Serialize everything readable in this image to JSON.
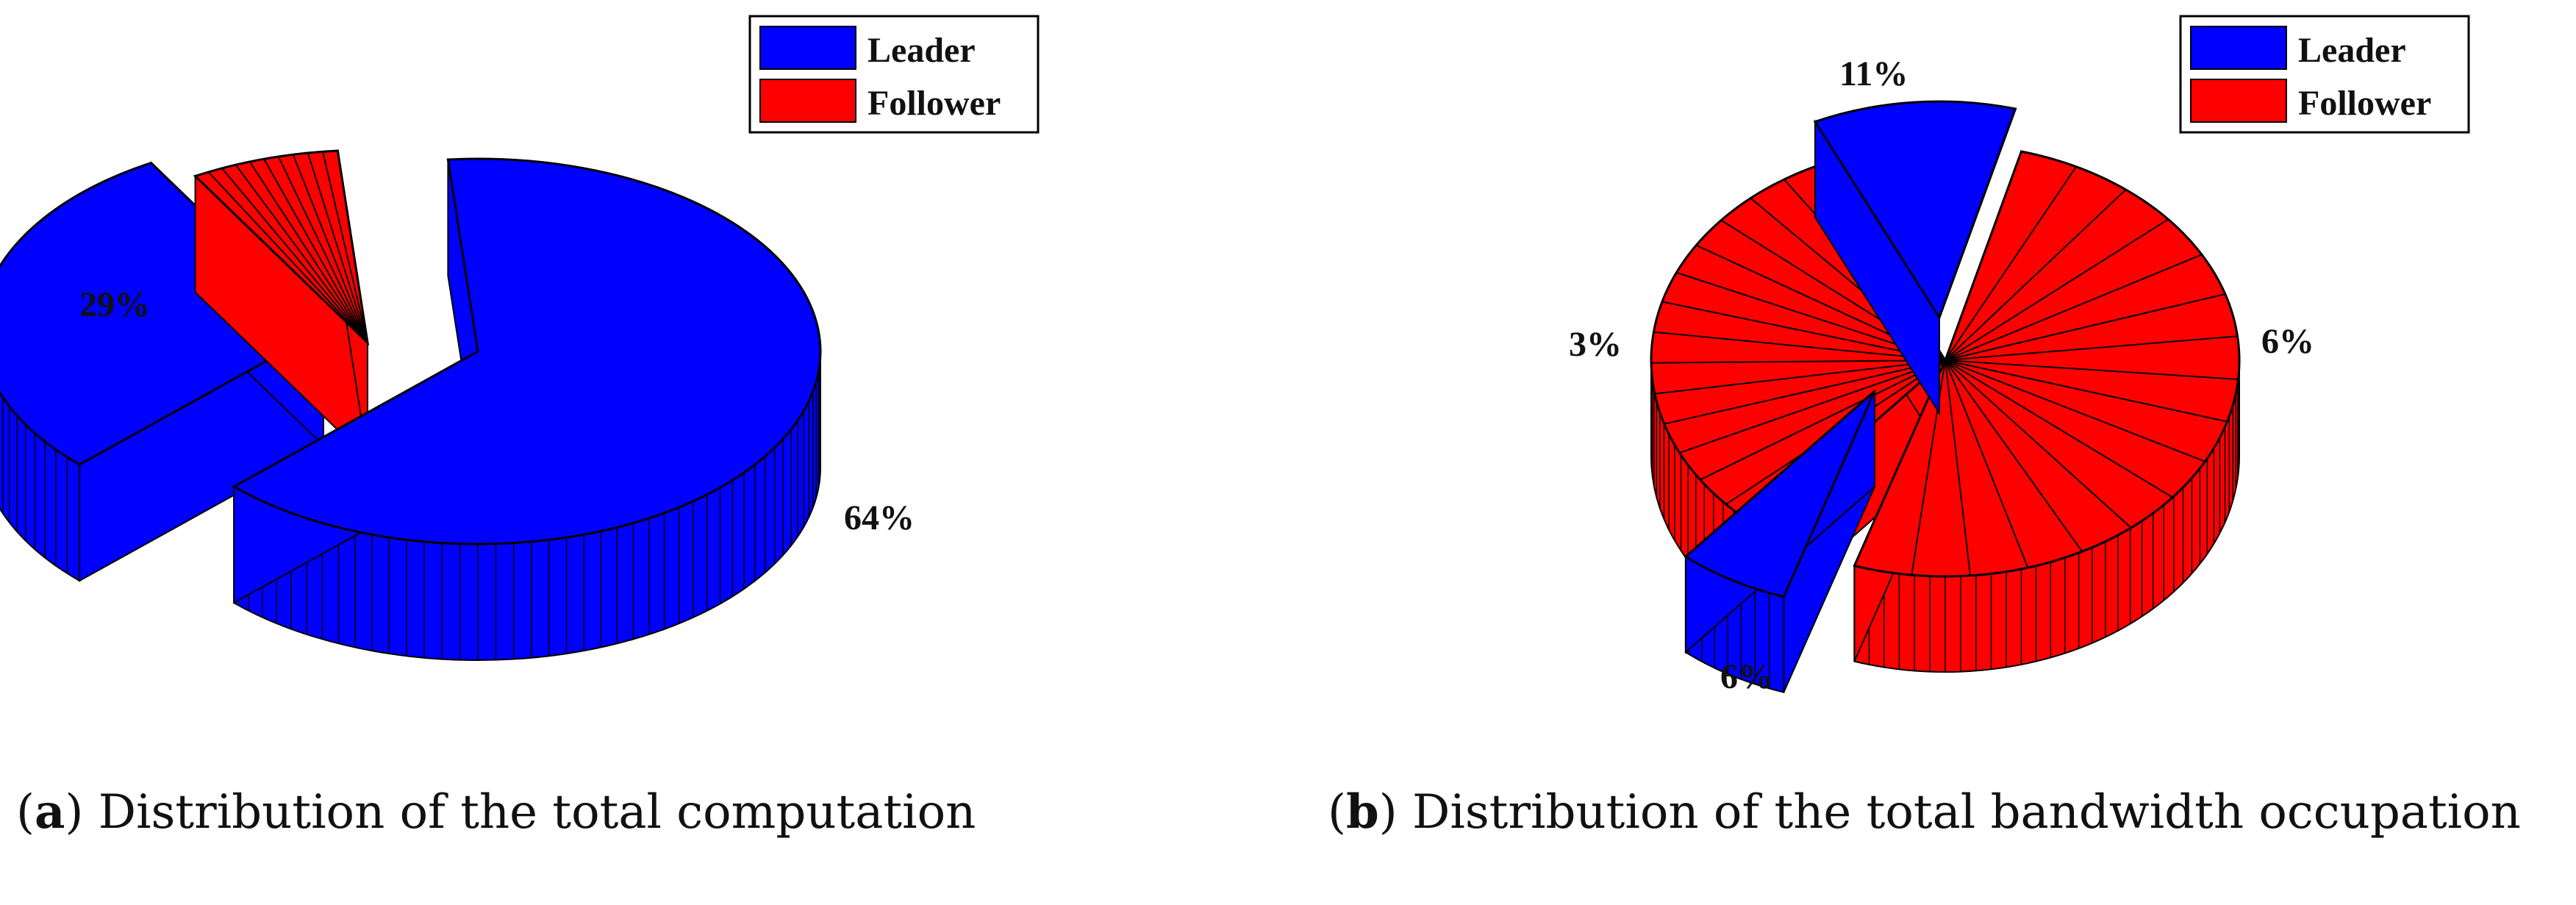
{
  "chart_data": [
    {
      "type": "pie",
      "style": "3d-exploded",
      "caption_label": "a",
      "caption_text": "Distribution of the total computation",
      "legend": {
        "placement": "top-right",
        "entries": [
          {
            "name": "Leader",
            "color": "#0000ff"
          },
          {
            "name": "Follower",
            "color": "#ff0000"
          }
        ]
      },
      "slices": [
        {
          "value": 64,
          "series": "Leader",
          "label": "64%"
        },
        {
          "value": 29,
          "series": "Leader",
          "label": "29%"
        },
        {
          "value": 7,
          "series": "Follower",
          "label": ""
        }
      ]
    },
    {
      "type": "pie",
      "style": "3d-exploded",
      "caption_label": "b",
      "caption_text": "Distribution of the total bandwidth occupation",
      "legend": {
        "placement": "top-right",
        "entries": [
          {
            "name": "Leader",
            "color": "#0000ff"
          },
          {
            "name": "Follower",
            "color": "#ff0000"
          }
        ]
      },
      "slices": [
        {
          "value": 11,
          "series": "Leader",
          "label": "11%"
        },
        {
          "value": 6,
          "series": "Follower",
          "label": "6%"
        },
        {
          "value": 6,
          "series": "Leader",
          "label": "6%"
        },
        {
          "value": 3,
          "series": "Follower",
          "label": "3%"
        }
      ],
      "note": "remaining follower area drawn as many small follower slices"
    }
  ],
  "colors": {
    "leader": "#0000ff",
    "follower": "#ff0000",
    "edge": "#000000"
  }
}
